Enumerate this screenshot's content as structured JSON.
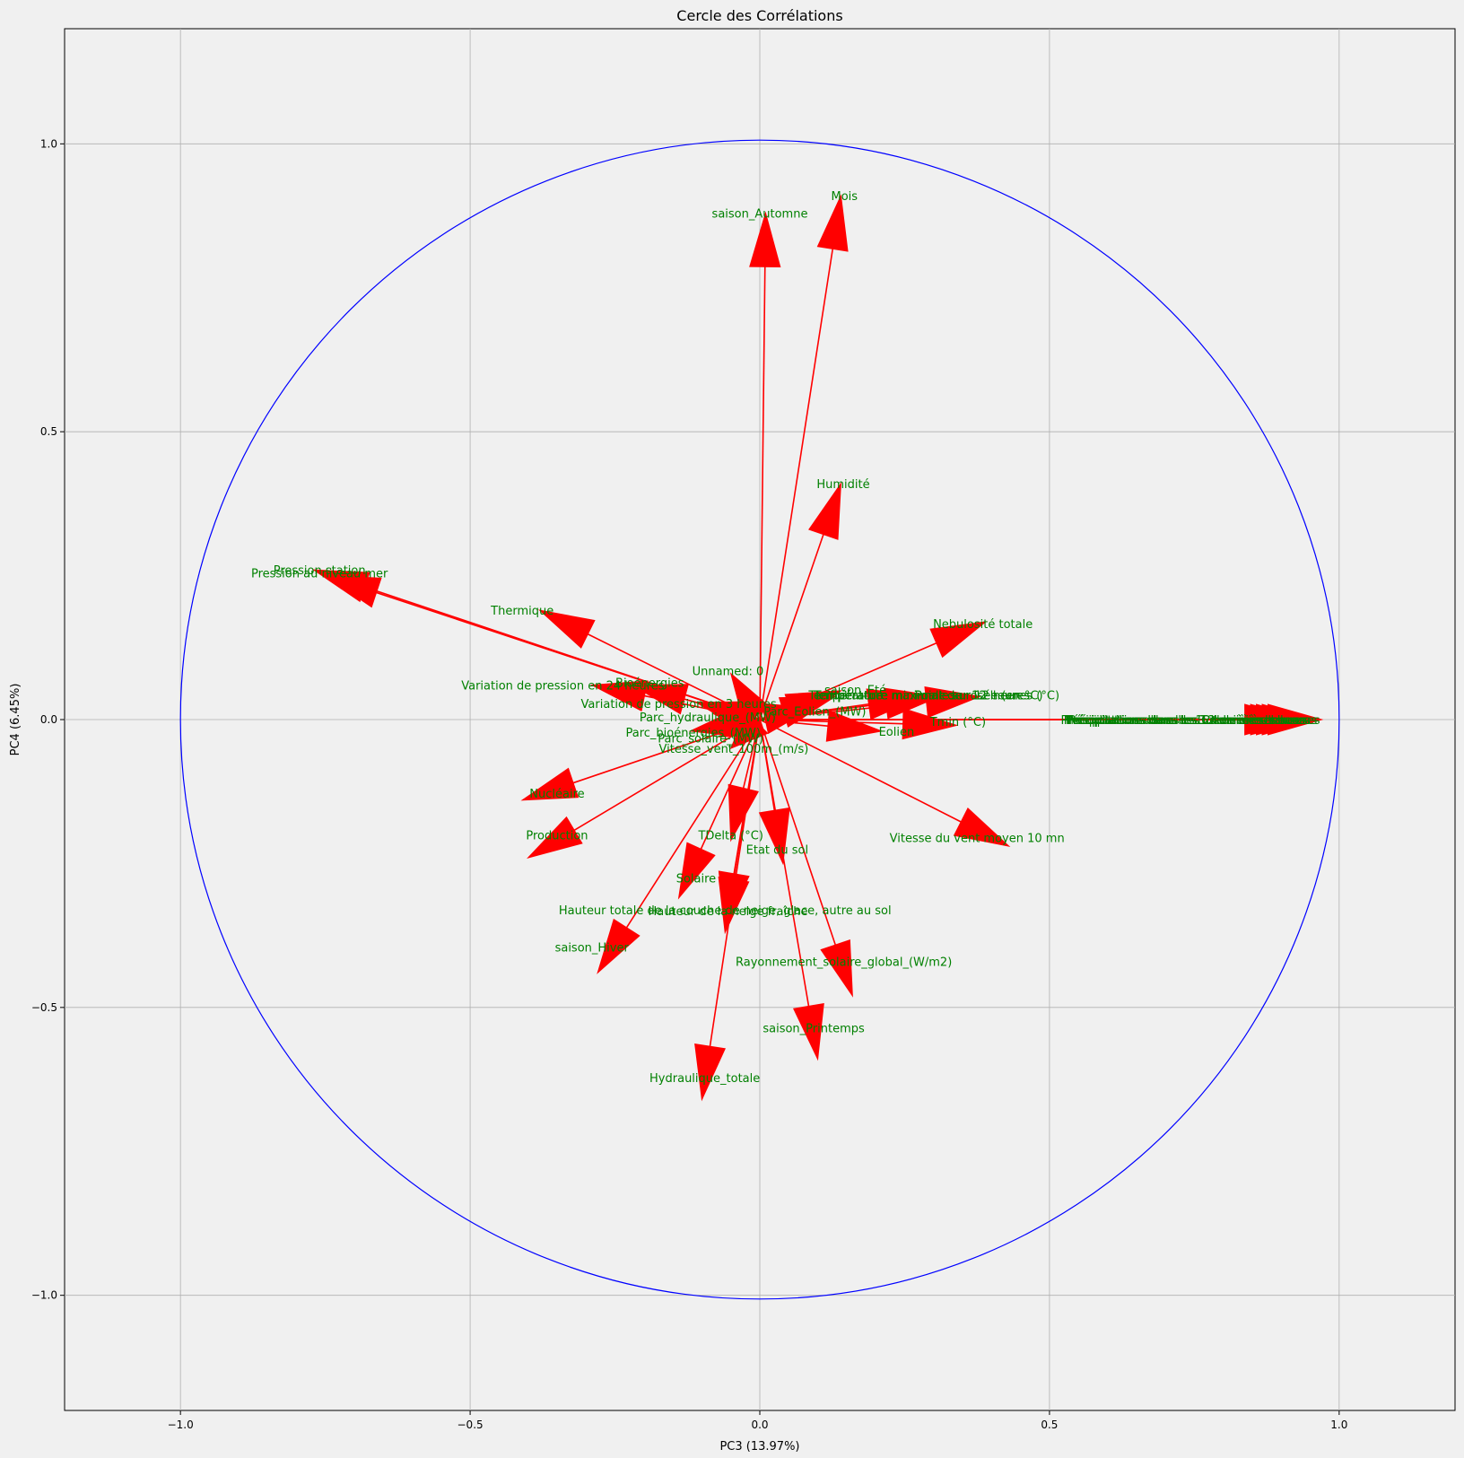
{
  "chart_data": {
    "type": "scatter",
    "title": "Cercle des Corrélations",
    "xlabel": "PC3 (13.97%)",
    "ylabel": "PC4 (6.45%)",
    "xlim": [
      -1.2,
      1.2
    ],
    "ylim": [
      -1.2,
      1.2
    ],
    "xticks": [
      "−1.0",
      "−0.5",
      "0.0",
      "0.5",
      "1.0"
    ],
    "xtick_values": [
      -1.0,
      -0.5,
      0.0,
      0.5,
      1.0
    ],
    "yticks": [
      "−1.0",
      "−0.5",
      "0.0",
      "0.5",
      "1.0"
    ],
    "ytick_values": [
      -1.0,
      -0.5,
      0.0,
      0.5,
      1.0
    ],
    "grid": true,
    "circle": {
      "radius": 1.0,
      "color": "#0000ff"
    },
    "arrow_color": "#ff0000",
    "label_color": "#008000",
    "vectors": [
      {
        "name": "saison_Automne",
        "x": 0.01,
        "y": 0.88
      },
      {
        "name": "Mois",
        "x": 0.14,
        "y": 0.91
      },
      {
        "name": "Humidité",
        "x": 0.14,
        "y": 0.41
      },
      {
        "name": "Pression station",
        "x": -0.77,
        "y": 0.26
      },
      {
        "name": "Pression au niveau mer",
        "x": -0.75,
        "y": 0.25
      },
      {
        "name": "Thermique",
        "x": -0.38,
        "y": 0.19
      },
      {
        "name": "Nebulosité totale",
        "x": 0.39,
        "y": 0.17
      },
      {
        "name": "Unnamed: 0",
        "x": -0.05,
        "y": 0.08
      },
      {
        "name": "Bioénergies",
        "x": -0.22,
        "y": 0.06
      },
      {
        "name": "Variation de pression en 24 heures",
        "x": -0.29,
        "y": 0.06
      },
      {
        "name": "Variation de pression en 3 heures",
        "x": -0.11,
        "y": 0.03
      },
      {
        "name": "saison_Eté",
        "x": 0.14,
        "y": 0.05
      },
      {
        "name": "Température",
        "x": 0.13,
        "y": 0.04
      },
      {
        "name": "Température minimale sur 12 heures",
        "x": 0.28,
        "y": 0.04
      },
      {
        "name": "Température maximale sur 12 heures (°C)",
        "x": 0.31,
        "y": 0.04
      },
      {
        "name": "Point de rosée (en °C)",
        "x": 0.38,
        "y": 0.04
      },
      {
        "name": "Parc_Eolien_(MW)",
        "x": 0.09,
        "y": 0.02
      },
      {
        "name": "Parc_hydraulique_(MW)",
        "x": -0.08,
        "y": 0.01
      },
      {
        "name": "Parc_bioénergies_(MW)",
        "x": -0.12,
        "y": -0.02
      },
      {
        "name": "Parc_solaire_(MW)",
        "x": -0.07,
        "y": -0.03
      },
      {
        "name": "Vitesse_vent_100m_(m/s)",
        "x": -0.05,
        "y": -0.05
      },
      {
        "name": "Eolien",
        "x": 0.21,
        "y": -0.02
      },
      {
        "name": "Tmin (°C)",
        "x": 0.34,
        "y": -0.01
      },
      {
        "name": "Précipitations dans les 1 dernières heures",
        "x": 0.93,
        "y": 0.0
      },
      {
        "name": "Précipitations dans les 3 dernières heures",
        "x": 0.94,
        "y": 0.0
      },
      {
        "name": "Précipitations dans les 6 dernières heures",
        "x": 0.95,
        "y": 0.0
      },
      {
        "name": "Précipitations dans les 12 dernières heures",
        "x": 0.96,
        "y": 0.0
      },
      {
        "name": "Précipitations dans les 24 dernières heures",
        "x": 0.97,
        "y": 0.0
      },
      {
        "name": "Nucléaire",
        "x": -0.41,
        "y": -0.14
      },
      {
        "name": "Production",
        "x": -0.4,
        "y": -0.24
      },
      {
        "name": "TDelta (°C)",
        "x": -0.05,
        "y": -0.21
      },
      {
        "name": "Etat du sol",
        "x": 0.04,
        "y": -0.25
      },
      {
        "name": "Vitesse du vent moyen 10 mn",
        "x": 0.43,
        "y": -0.22
      },
      {
        "name": "Solaire",
        "x": -0.14,
        "y": -0.31
      },
      {
        "name": "Hauteur totale de la couche de neige, glace, autre au sol",
        "x": -0.06,
        "y": -0.36
      },
      {
        "name": "Hauteur de la neige fraîche",
        "x": -0.06,
        "y": -0.37
      },
      {
        "name": "saison_Hiver",
        "x": -0.28,
        "y": -0.44
      },
      {
        "name": "Rayonnement_solaire_global_(W/m2)",
        "x": 0.16,
        "y": -0.48
      },
      {
        "name": "saison_Printemps",
        "x": 0.1,
        "y": -0.59
      },
      {
        "name": "Hydraulique_totale",
        "x": -0.1,
        "y": -0.66
      }
    ],
    "labels": [
      {
        "text": "saison_Automne",
        "x": 0.0,
        "y": 0.88
      },
      {
        "text": "Mois",
        "x": 0.146,
        "y": 0.91
      },
      {
        "text": "Humidité",
        "x": 0.144,
        "y": 0.41
      },
      {
        "text": "Pression station",
        "x": -0.76,
        "y": 0.26
      },
      {
        "text": "Pression au niveau mer",
        "x": -0.76,
        "y": 0.255
      },
      {
        "text": "Thermique",
        "x": -0.41,
        "y": 0.19
      },
      {
        "text": "Nebulosité totale",
        "x": 0.385,
        "y": 0.167
      },
      {
        "text": "Unnamed: 0",
        "x": -0.055,
        "y": 0.085
      },
      {
        "text": "Bioénergies",
        "x": -0.19,
        "y": 0.065
      },
      {
        "text": "Variation de pression en 24 heures",
        "x": -0.34,
        "y": 0.06
      },
      {
        "text": "Variation de pression en 3 heures",
        "x": -0.14,
        "y": 0.028
      },
      {
        "text": "saison_Eté",
        "x": 0.165,
        "y": 0.052
      },
      {
        "text": "Température",
        "x": 0.148,
        "y": 0.043
      },
      {
        "text": "Température minimale sur 12 heures",
        "x": 0.28,
        "y": 0.043
      },
      {
        "text": "Température maximale sur 12 heures (°C)",
        "x": 0.305,
        "y": 0.043
      },
      {
        "text": "Point de rosée (en °C)",
        "x": 0.378,
        "y": 0.043
      },
      {
        "text": "Parc_Eolien_(MW)",
        "x": 0.095,
        "y": 0.015
      },
      {
        "text": "Parc_hydraulique_(MW)",
        "x": -0.09,
        "y": 0.005
      },
      {
        "text": "Parc_bioénergies_(MW)",
        "x": -0.115,
        "y": -0.022
      },
      {
        "text": "Parc_solaire_(MW)",
        "x": -0.085,
        "y": -0.032
      },
      {
        "text": "Vitesse_vent_100m_(m/s)",
        "x": -0.045,
        "y": -0.05
      },
      {
        "text": "Eolien",
        "x": 0.236,
        "y": -0.02
      },
      {
        "text": "Tmin (°C)",
        "x": 0.342,
        "y": -0.003
      },
      {
        "text": "Précipitations dans les 1 dernières heures",
        "x": 0.73,
        "y": 0.0
      },
      {
        "text": "Précipitations dans les 3 dernières heures",
        "x": 0.735,
        "y": 0.0
      },
      {
        "text": "Précipitations dans les 6 dernières heures",
        "x": 0.74,
        "y": 0.0
      },
      {
        "text": "Précipitations dans les 12 dernières heures",
        "x": 0.745,
        "y": 0.0
      },
      {
        "text": "Précipitations dans les 24 dernières heures",
        "x": 0.75,
        "y": 0.0
      },
      {
        "text": "Nucléaire",
        "x": -0.35,
        "y": -0.128
      },
      {
        "text": "Production",
        "x": -0.35,
        "y": -0.2
      },
      {
        "text": "TDelta (°C)",
        "x": -0.05,
        "y": -0.2
      },
      {
        "text": "Etat du sol",
        "x": 0.03,
        "y": -0.225
      },
      {
        "text": "Vitesse du vent moyen 10 mn",
        "x": 0.375,
        "y": -0.205
      },
      {
        "text": "Solaire",
        "x": -0.11,
        "y": -0.275
      },
      {
        "text": "Hauteur totale de la couche de neige, glace, autre au sol",
        "x": -0.06,
        "y": -0.33
      },
      {
        "text": "Hauteur de la neige fraîche",
        "x": -0.055,
        "y": -0.332
      },
      {
        "text": "saison_Hiver",
        "x": -0.29,
        "y": -0.395
      },
      {
        "text": "Rayonnement_solaire_global_(W/m2)",
        "x": 0.145,
        "y": -0.42
      },
      {
        "text": "saison_Printemps",
        "x": 0.093,
        "y": -0.535
      },
      {
        "text": "Hydraulique_totale",
        "x": -0.095,
        "y": -0.622
      }
    ]
  }
}
